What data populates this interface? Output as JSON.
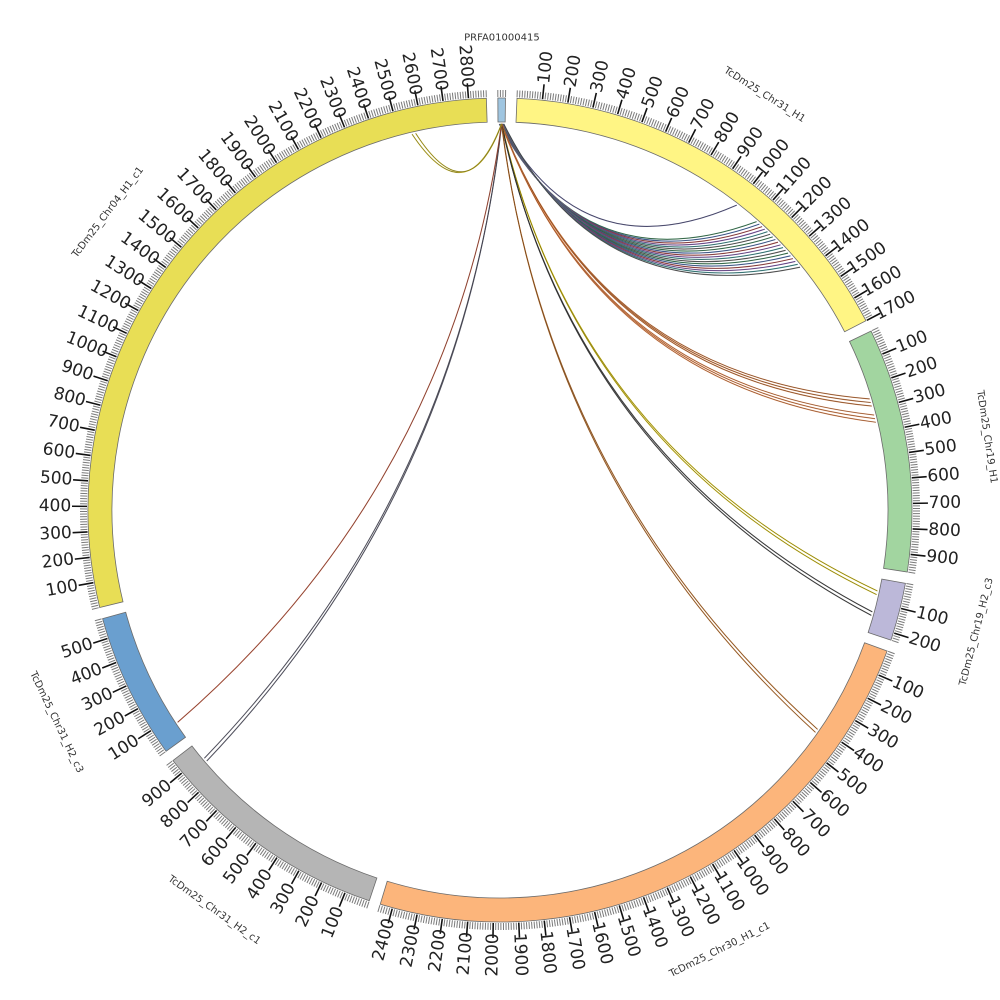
{
  "chart_data": {
    "type": "circos",
    "segments": [
      {
        "name": "PRFA01000415",
        "length": 30,
        "color": "#9fc5e0",
        "tick_step": 100,
        "label_start": 100
      },
      {
        "name": "TcDm25_Chr31_H1",
        "length": 1700,
        "color": "#fff584",
        "tick_step": 100,
        "label_start": 100
      },
      {
        "name": "TcDm25_Chr19_H1",
        "length": 970,
        "color": "#a2d5a0",
        "tick_step": 100,
        "label_start": 100
      },
      {
        "name": "TcDm25_Chr19_H2_c3",
        "length": 230,
        "color": "#bcb8d9",
        "tick_step": 100,
        "label_start": 100
      },
      {
        "name": "TcDm25_Chr30_H1_c1",
        "length": 2450,
        "color": "#fcb57b",
        "tick_step": 100,
        "label_start": 100
      },
      {
        "name": "TcDm25_Chr31_H2_c1",
        "length": 960,
        "color": "#b5b5b5",
        "tick_step": 100,
        "label_start": 100
      },
      {
        "name": "TcDm25_Chr31_H2_c3",
        "length": 580,
        "color": "#6a9fcf",
        "tick_step": 100,
        "label_start": 100
      },
      {
        "name": "TcDm25_Chr04_H1_c1",
        "length": 2870,
        "color": "#e8de55",
        "tick_step": 100,
        "label_start": 100
      }
    ],
    "links": [
      {
        "from": "PRFA01000415",
        "to": "TcDm25_Chr31_H1",
        "to_pos": 1000,
        "color": "#4b4b80",
        "count": 1
      },
      {
        "from": "PRFA01000415",
        "to": "TcDm25_Chr31_H1",
        "to_pos": 1240,
        "color": "#1f6b4a",
        "count": 18
      },
      {
        "from": "PRFA01000415",
        "to": "TcDm25_Chr19_H1",
        "to_pos": 270,
        "color": "#c96a2b",
        "count": 3
      },
      {
        "from": "PRFA01000415",
        "to": "TcDm25_Chr19_H1",
        "to_pos": 340,
        "color": "#e07a3c",
        "count": 3
      },
      {
        "from": "PRFA01000415",
        "to": "TcDm25_Chr19_H2_c3",
        "to_pos": 60,
        "color": "#c9b400",
        "count": 2
      },
      {
        "from": "PRFA01000415",
        "to": "TcDm25_Chr19_H2_c3",
        "to_pos": 150,
        "color": "#333333",
        "count": 2
      },
      {
        "from": "PRFA01000415",
        "to": "TcDm25_Chr30_H1_c1",
        "to_pos": 420,
        "color": "#b5651d",
        "count": 2
      },
      {
        "from": "PRFA01000415",
        "to": "TcDm25_Chr31_H2_c1",
        "to_pos": 880,
        "color": "#555566",
        "count": 2
      },
      {
        "from": "PRFA01000415",
        "to": "TcDm25_Chr31_H2_c3",
        "to_pos": 70,
        "color": "#b5472c",
        "count": 1
      },
      {
        "from": "PRFA01000415",
        "to": "TcDm25_Chr04_H1_c1",
        "to_pos": 2560,
        "color": "#bfae1a",
        "count": 2
      }
    ]
  }
}
